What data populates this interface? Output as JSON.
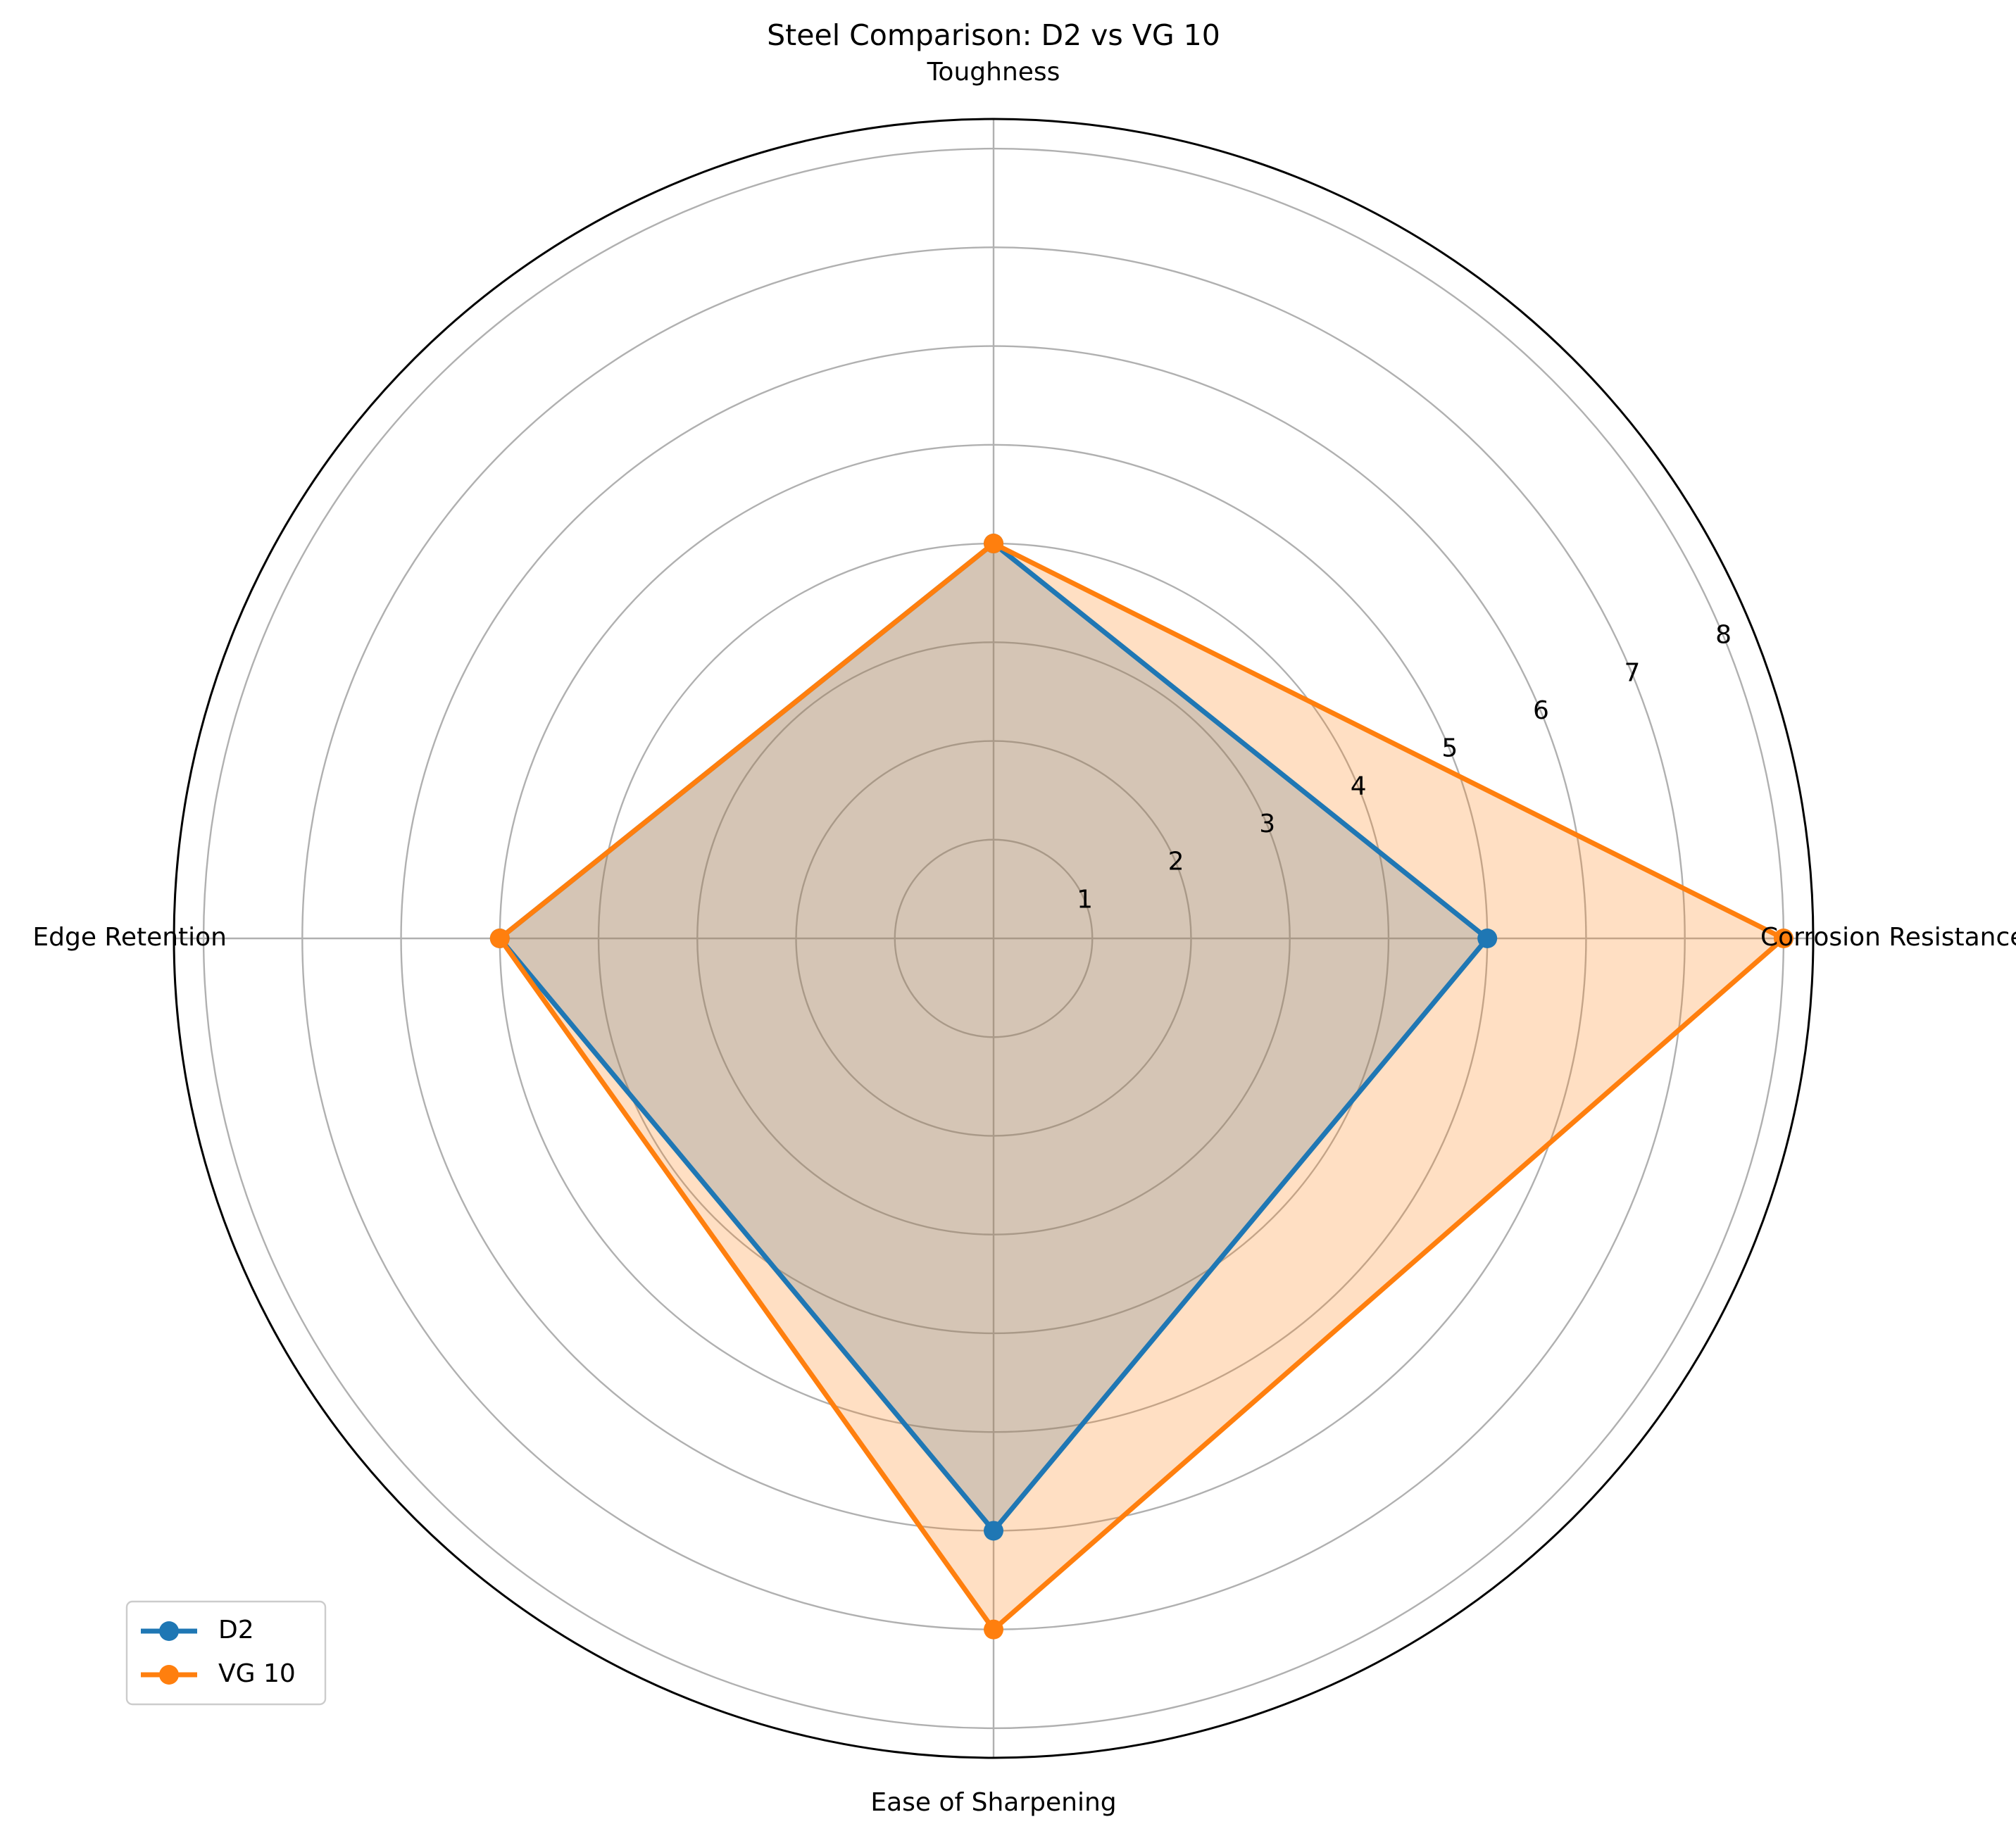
{
  "chart_data": {
    "type": "radar",
    "title": "Steel Comparison: D2 vs VG 10",
    "categories": [
      "Corrosion Resistance",
      "Toughness",
      "Edge Retention",
      "Ease of Sharpening"
    ],
    "series": [
      {
        "name": "D2",
        "values": [
          5,
          4,
          5,
          6
        ],
        "color": "#1f77b4"
      },
      {
        "name": "VG 10",
        "values": [
          8,
          4,
          5,
          7
        ],
        "color": "#ff7f0e"
      }
    ],
    "rlim": [
      0,
      8.3
    ],
    "rticks": [
      "1",
      "2",
      "3",
      "4",
      "5",
      "6",
      "7",
      "8"
    ],
    "grid": true,
    "legend_position": "lower-left"
  }
}
